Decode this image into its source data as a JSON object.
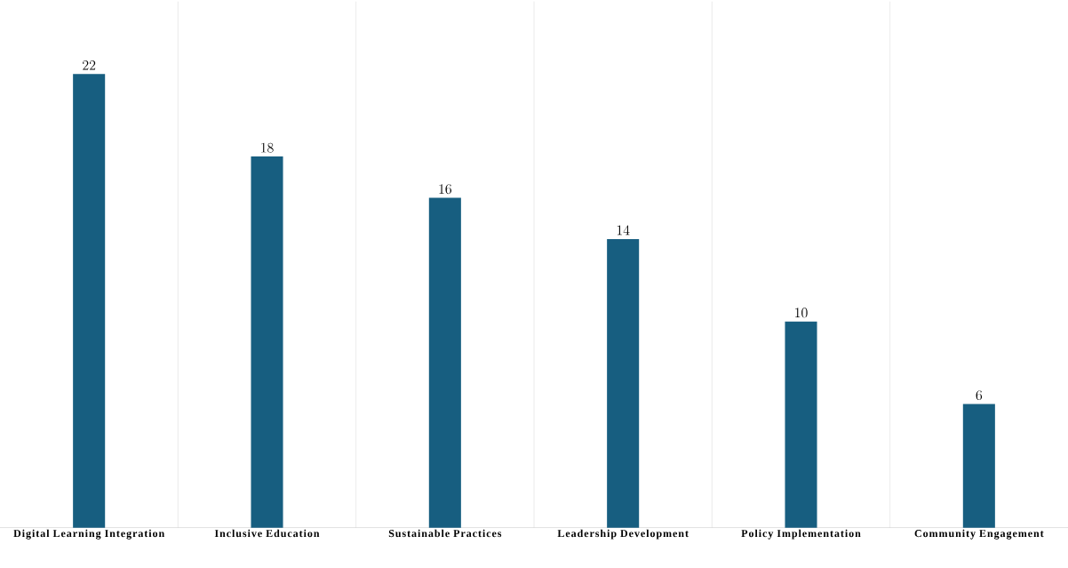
{
  "chart_data": {
    "type": "bar",
    "categories": [
      "Digital Learning Integration",
      "Inclusive Education",
      "Sustainable Practices",
      "Leadership Development",
      "Policy Implementation",
      "Community Engagement"
    ],
    "values": [
      22,
      18,
      16,
      14,
      10,
      6
    ],
    "color": "#175e80",
    "data_labels": true,
    "grid": "x"
  }
}
